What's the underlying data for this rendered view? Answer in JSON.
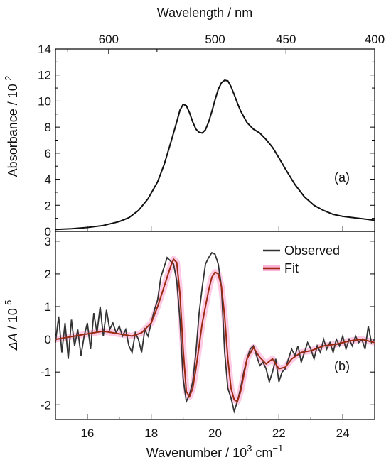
{
  "chart_data": [
    {
      "id": "absorbance",
      "type": "line",
      "panel_label": "(a)",
      "top_axis": {
        "label": "Wavelength / nm",
        "ticks": [
          600,
          500,
          450,
          400
        ],
        "tick_labels": [
          "600",
          "500",
          "450",
          "400"
        ]
      },
      "ylabel": {
        "main": "Absorbance / 10",
        "exp": "-2"
      },
      "xlim": [
        15,
        25
      ],
      "ylim": [
        0,
        14
      ],
      "yticks": [
        0,
        2,
        4,
        6,
        8,
        10,
        12,
        14
      ],
      "ytick_labels": [
        "0",
        "2",
        "4",
        "6",
        "8",
        "10",
        "12",
        "14"
      ],
      "series": [
        {
          "color": "#111111",
          "x": [
            15.0,
            15.5,
            16.0,
            16.5,
            17.0,
            17.3,
            17.6,
            17.9,
            18.2,
            18.4,
            18.6,
            18.8,
            18.9,
            19.0,
            19.1,
            19.2,
            19.3,
            19.4,
            19.5,
            19.6,
            19.7,
            19.8,
            19.9,
            20.0,
            20.1,
            20.2,
            20.3,
            20.4,
            20.5,
            20.6,
            20.7,
            20.8,
            20.9,
            21.0,
            21.2,
            21.4,
            21.6,
            21.8,
            22.0,
            22.2,
            22.5,
            22.8,
            23.1,
            23.4,
            23.7,
            24.0,
            24.5,
            25.0
          ],
          "y": [
            0.15,
            0.2,
            0.3,
            0.45,
            0.75,
            1.05,
            1.6,
            2.5,
            3.8,
            5.1,
            6.7,
            8.4,
            9.3,
            9.75,
            9.65,
            9.1,
            8.4,
            7.85,
            7.6,
            7.55,
            7.8,
            8.4,
            9.2,
            10.1,
            10.9,
            11.4,
            11.6,
            11.55,
            11.1,
            10.5,
            9.85,
            9.25,
            8.8,
            8.35,
            7.85,
            7.55,
            7.05,
            6.45,
            5.65,
            4.8,
            3.6,
            2.65,
            2.0,
            1.6,
            1.3,
            1.15,
            1.0,
            0.85
          ]
        }
      ]
    },
    {
      "id": "difference",
      "type": "line",
      "panel_label": "(b)",
      "xlabel": {
        "main": "Wavenumber / 10",
        "exp": "3",
        "unit": " cm",
        "unit_exp": "−1"
      },
      "ylabel": {
        "italic": "ΔA",
        "main": " / 10",
        "exp": "-5"
      },
      "xlim": [
        15,
        25
      ],
      "ylim": [
        -2.45,
        3.3
      ],
      "xticks": [
        16,
        18,
        20,
        22,
        24
      ],
      "xtick_labels": [
        "16",
        "18",
        "20",
        "22",
        "24"
      ],
      "yticks": [
        -2,
        -1,
        0,
        1,
        2,
        3
      ],
      "ytick_labels": [
        "-2",
        "-1",
        "0",
        "1",
        "2",
        "3"
      ],
      "legend": {
        "position": "top-right"
      },
      "series": [
        {
          "name": "Observed",
          "color": "#333333",
          "x": [
            15.0,
            15.1,
            15.2,
            15.3,
            15.4,
            15.5,
            15.6,
            15.7,
            15.8,
            15.9,
            16.0,
            16.1,
            16.2,
            16.3,
            16.4,
            16.5,
            16.6,
            16.7,
            16.8,
            16.9,
            17.0,
            17.1,
            17.2,
            17.3,
            17.4,
            17.5,
            17.6,
            17.7,
            17.8,
            17.9,
            18.0,
            18.1,
            18.2,
            18.3,
            18.4,
            18.5,
            18.6,
            18.7,
            18.8,
            18.9,
            19.0,
            19.1,
            19.2,
            19.3,
            19.4,
            19.5,
            19.6,
            19.7,
            19.8,
            19.9,
            20.0,
            20.1,
            20.2,
            20.3,
            20.4,
            20.5,
            20.6,
            20.7,
            20.8,
            20.9,
            21.0,
            21.1,
            21.2,
            21.3,
            21.4,
            21.5,
            21.6,
            21.7,
            21.8,
            21.9,
            22.0,
            22.1,
            22.2,
            22.3,
            22.4,
            22.5,
            22.6,
            22.7,
            22.8,
            22.9,
            23.0,
            23.1,
            23.2,
            23.3,
            23.4,
            23.5,
            23.6,
            23.7,
            23.8,
            23.9,
            24.0,
            24.1,
            24.2,
            24.3,
            24.4,
            24.5,
            24.6,
            24.7,
            24.8,
            24.9,
            25.0
          ],
          "y": [
            -0.1,
            0.7,
            -0.4,
            0.5,
            -0.6,
            0.6,
            -0.2,
            0.3,
            -0.5,
            0.1,
            0.5,
            -0.3,
            0.8,
            0.2,
            1.0,
            0.1,
            0.9,
            0.3,
            0.5,
            0.2,
            0.4,
            0.1,
            0.3,
            -0.2,
            -0.4,
            0.2,
            0.0,
            -0.4,
            0.3,
            0.1,
            0.5,
            0.9,
            1.2,
            1.9,
            2.2,
            2.5,
            2.4,
            2.3,
            1.8,
            0.6,
            -1.2,
            -1.9,
            -1.7,
            -1.3,
            -0.4,
            0.8,
            1.6,
            2.3,
            2.5,
            2.65,
            2.6,
            2.3,
            1.6,
            -0.4,
            -1.5,
            -1.8,
            -2.2,
            -1.9,
            -1.5,
            -1.0,
            -0.6,
            -0.3,
            -0.2,
            -0.5,
            -0.8,
            -0.7,
            -0.9,
            -1.3,
            -1.0,
            -0.6,
            -1.3,
            -1.0,
            -0.9,
            -0.6,
            -0.3,
            -0.5,
            -0.2,
            -0.7,
            -0.4,
            -0.1,
            -0.3,
            -0.6,
            -0.2,
            -0.4,
            0.0,
            -0.3,
            -0.1,
            -0.4,
            0.0,
            -0.2,
            0.1,
            -0.3,
            0.0,
            -0.2,
            0.1,
            -0.1,
            0.0,
            -0.3,
            0.4,
            -0.1,
            0.0
          ]
        },
        {
          "name": "Fit",
          "color": "#9b2a12",
          "x": [
            15.0,
            15.3,
            15.6,
            15.9,
            16.2,
            16.5,
            16.8,
            17.1,
            17.4,
            17.7,
            18.0,
            18.2,
            18.4,
            18.6,
            18.7,
            18.8,
            18.9,
            19.0,
            19.1,
            19.2,
            19.3,
            19.4,
            19.5,
            19.6,
            19.7,
            19.8,
            19.9,
            20.0,
            20.1,
            20.2,
            20.3,
            20.4,
            20.5,
            20.6,
            20.7,
            20.8,
            20.9,
            21.0,
            21.2,
            21.4,
            21.6,
            21.8,
            22.0,
            22.2,
            22.4,
            22.7,
            23.0,
            23.4,
            23.8,
            24.2,
            24.6,
            25.0
          ],
          "y": [
            0.0,
            0.05,
            0.1,
            0.15,
            0.2,
            0.25,
            0.2,
            0.15,
            0.1,
            0.2,
            0.5,
            1.0,
            1.6,
            2.2,
            2.45,
            2.35,
            1.4,
            -0.3,
            -1.6,
            -1.75,
            -1.5,
            -0.9,
            -0.2,
            0.5,
            1.0,
            1.5,
            1.9,
            2.05,
            2.0,
            1.6,
            0.7,
            -0.6,
            -1.5,
            -1.85,
            -1.9,
            -1.6,
            -1.1,
            -0.6,
            -0.25,
            -0.55,
            -0.75,
            -0.6,
            -0.9,
            -0.85,
            -0.6,
            -0.4,
            -0.35,
            -0.2,
            -0.15,
            -0.05,
            0.0,
            -0.1
          ]
        }
      ]
    }
  ]
}
